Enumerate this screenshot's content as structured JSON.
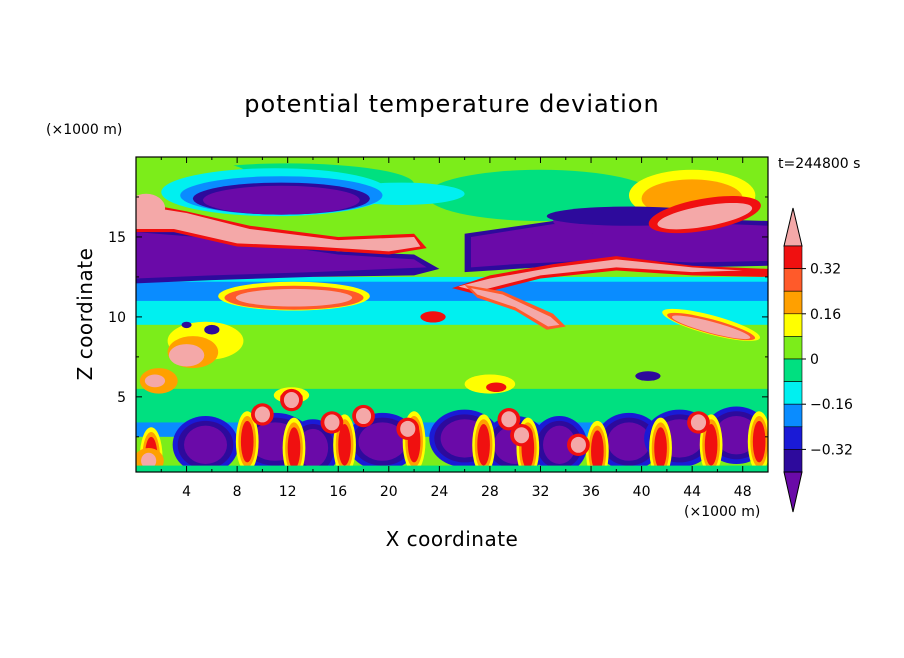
{
  "chart_data": {
    "type": "heatmap",
    "title": "potential temperature deviation",
    "xlabel": "X coordinate",
    "ylabel": "Z coordinate",
    "x_unit": "(×1000 m)",
    "y_unit": "(×1000 m)",
    "time_label": "t=244800 s",
    "xlim": [
      0,
      50
    ],
    "ylim": [
      0.3,
      20
    ],
    "x_ticks": [
      4,
      8,
      12,
      16,
      20,
      24,
      28,
      32,
      36,
      40,
      44,
      48
    ],
    "y_ticks": [
      5,
      10,
      15
    ],
    "colorbar": {
      "levels": [
        -0.4,
        -0.32,
        -0.24,
        -0.16,
        -0.08,
        0,
        0.08,
        0.16,
        0.24,
        0.32,
        0.4
      ],
      "tick_labels": [
        "0.32",
        "0.16",
        "0",
        "−0.16",
        "−0.32"
      ],
      "tick_values": [
        0.32,
        0.16,
        0,
        -0.16,
        -0.32
      ],
      "extend": "both",
      "colors": [
        "#6a0aa8",
        "#2d0a9c",
        "#1a1ad6",
        "#0a8cff",
        "#00f0f0",
        "#00e080",
        "#7ced1a",
        "#ffff00",
        "#ffa000",
        "#ff5a2a",
        "#f01010",
        "#f4a8a8"
      ]
    }
  }
}
